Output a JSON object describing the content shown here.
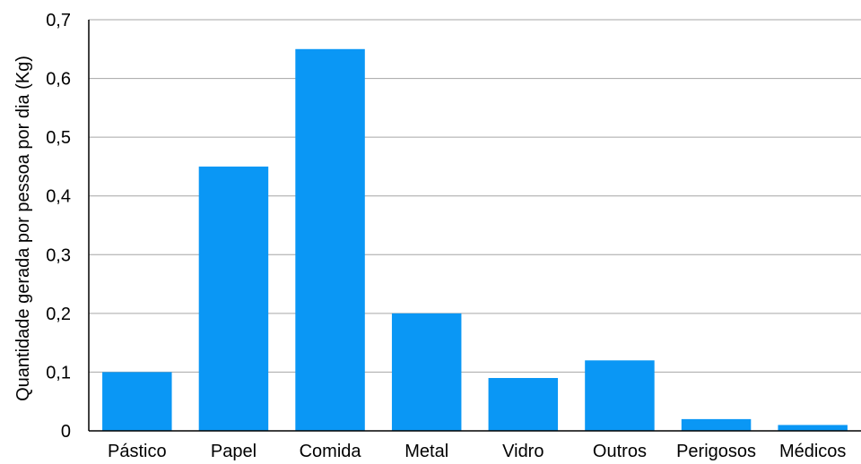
{
  "chart_data": {
    "type": "bar",
    "title": "",
    "xlabel": "",
    "ylabel": "Quantidade gerada por pessoa por dia (Kg)",
    "categories": [
      "Pástico",
      "Papel",
      "Comida",
      "Metal",
      "Vidro",
      "Outros",
      "Perigosos",
      "Médicos"
    ],
    "values": [
      0.1,
      0.45,
      0.65,
      0.2,
      0.09,
      0.12,
      0.02,
      0.01
    ],
    "ylim": [
      0,
      0.7
    ],
    "yticks": [
      0,
      0.1,
      0.2,
      0.3,
      0.4,
      0.5,
      0.6,
      0.7
    ],
    "ytick_labels": [
      "0",
      "0,1",
      "0,2",
      "0,3",
      "0,4",
      "0,5",
      "0,6",
      "0,7"
    ],
    "grid": true,
    "legend": "none",
    "colors": {
      "bar": "#0a97f5",
      "grid": "#a6a6a6",
      "axis": "#000000"
    }
  }
}
